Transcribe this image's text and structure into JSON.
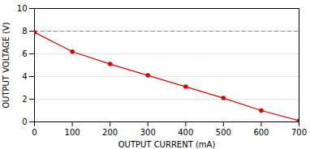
{
  "chart_data": {
    "type": "line",
    "x": [
      0,
      100,
      200,
      300,
      400,
      500,
      600,
      700
    ],
    "values": [
      7.9,
      6.2,
      5.1,
      4.1,
      3.1,
      2.1,
      1.0,
      0.1
    ],
    "xlabel": "OUTPUT CURRENT (mA)",
    "ylabel": "OUTPUT VOLTAGE (V)",
    "xlim": [
      0,
      700
    ],
    "ylim": [
      0,
      10
    ],
    "xticks": [
      0,
      100,
      200,
      300,
      400,
      500,
      600,
      700
    ],
    "yticks": [
      0,
      2,
      4,
      6,
      8,
      10
    ],
    "grid": true,
    "color": "#dd0000",
    "marker": "circle",
    "reference_line": {
      "y": 8,
      "line_style": "dashed",
      "color": "#888888"
    }
  }
}
